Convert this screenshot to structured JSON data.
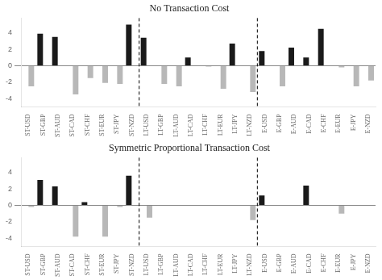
{
  "chart_data": [
    {
      "type": "bar",
      "title": "No Transaction Cost",
      "categories": [
        "ST-USD",
        "ST-GBP",
        "ST-AUD",
        "ST-CAD",
        "ST-CHF",
        "ST-EUR",
        "ST-JPY",
        "ST-NZD",
        "LT-USD",
        "LT-GBP",
        "LT-AUD",
        "LT-CAD",
        "LT-CHF",
        "LT-EUR",
        "LT-JPY",
        "LT-NZD",
        "E-USD",
        "E-GBP",
        "E-AUD",
        "E-CAD",
        "E-CHF",
        "E-EUR",
        "E-JPY",
        "E-NZD"
      ],
      "series": [
        {
          "color": "#1a1a1a",
          "values": [
            0.0,
            3.9,
            3.5,
            0.0,
            0.0,
            0.0,
            0.0,
            5.0,
            3.4,
            0.0,
            0.0,
            1.0,
            0.0,
            0.0,
            2.7,
            0.0,
            1.8,
            0.0,
            2.2,
            1.0,
            4.5,
            0.0,
            0.0,
            0.0
          ]
        },
        {
          "color": "#b8b8b8",
          "values": [
            -2.5,
            0.0,
            0.0,
            -3.5,
            -1.5,
            -2.1,
            -2.2,
            0.0,
            0.0,
            -2.2,
            -2.5,
            0.0,
            -0.1,
            -2.8,
            0.0,
            -3.2,
            0.0,
            -2.5,
            0.0,
            0.0,
            0.0,
            -0.2,
            -2.5,
            -1.8
          ]
        }
      ],
      "ylim": [
        -5.0,
        5.8
      ],
      "yticks": [
        -4,
        -2,
        0,
        2,
        4
      ],
      "grid": false
    },
    {
      "type": "bar",
      "title": "Symmetric Proportional Transaction Cost",
      "categories": [
        "ST-USD",
        "ST-GBP",
        "ST-AUD",
        "ST-CAD",
        "ST-CHF",
        "ST-EUR",
        "ST-JPY",
        "ST-NZD",
        "LT-USD",
        "LT-GBP",
        "LT-AUD",
        "LT-CAD",
        "LT-CHF",
        "LT-EUR",
        "LT-JPY",
        "LT-NZD",
        "E-USD",
        "E-GBP",
        "E-AUD",
        "E-CAD",
        "E-CHF",
        "E-EUR",
        "E-JPY",
        "E-NZD"
      ],
      "series": [
        {
          "color": "#1a1a1a",
          "values": [
            0.0,
            3.1,
            2.3,
            0.0,
            0.4,
            0.0,
            0.0,
            3.6,
            0.0,
            0.0,
            0.0,
            0.0,
            0.0,
            0.0,
            0.0,
            0.0,
            1.2,
            0.0,
            0.0,
            2.4,
            0.0,
            0.0,
            0.0,
            0.0
          ]
        },
        {
          "color": "#b8b8b8",
          "values": [
            -0.2,
            0.0,
            0.0,
            -3.8,
            0.0,
            -3.8,
            -0.2,
            0.0,
            -1.5,
            0.0,
            0.0,
            0.0,
            0.0,
            0.0,
            0.0,
            -1.8,
            0.0,
            0.0,
            0.0,
            0.0,
            0.0,
            -1.0,
            0.0,
            0.0
          ]
        }
      ],
      "ylim": [
        -5.0,
        5.8
      ],
      "yticks": [
        -4,
        -2,
        0,
        2,
        4
      ],
      "grid": false
    }
  ]
}
